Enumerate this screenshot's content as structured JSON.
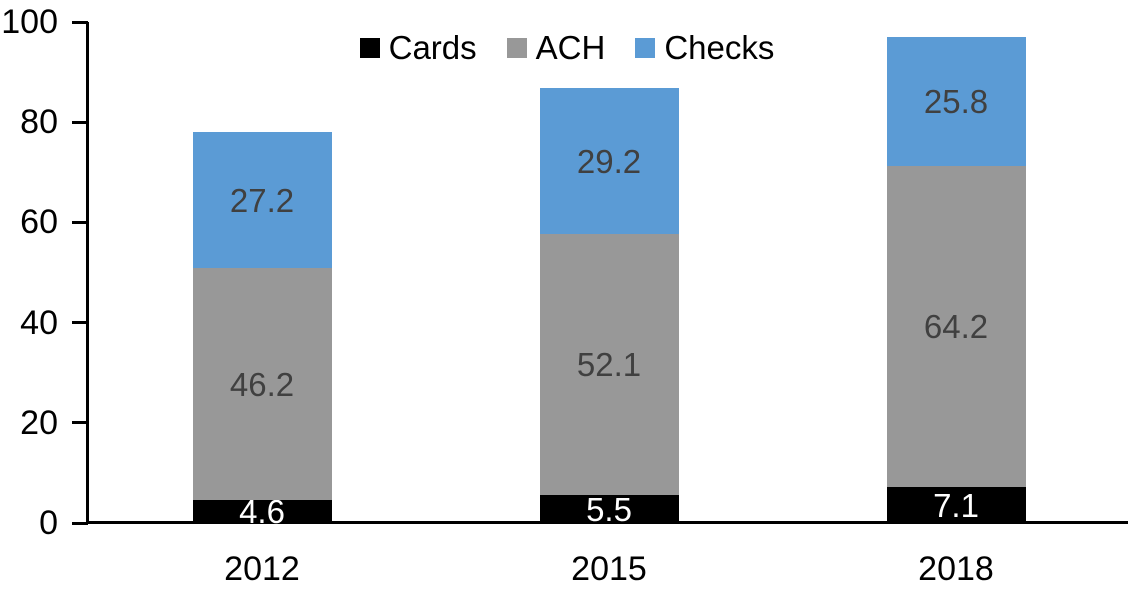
{
  "chart_data": {
    "type": "bar",
    "stacked": true,
    "title": "",
    "xlabel": "",
    "ylabel": "",
    "categories": [
      "2012",
      "2015",
      "2018"
    ],
    "series": [
      {
        "name": "Cards",
        "color": "#000000",
        "label_color": "#ffffff",
        "values": [
          4.6,
          5.5,
          7.1
        ]
      },
      {
        "name": "ACH",
        "color": "#989898",
        "label_color": "#404040",
        "values": [
          46.2,
          52.1,
          64.2
        ]
      },
      {
        "name": "Checks",
        "color": "#5b9bd5",
        "label_color": "#404040",
        "values": [
          27.2,
          29.2,
          25.8
        ]
      }
    ],
    "yticks": [
      0,
      20,
      40,
      60,
      80,
      100
    ],
    "ylim": [
      0,
      100
    ],
    "grid": false,
    "legend_position": "top-center",
    "axis_color": "#000000"
  }
}
